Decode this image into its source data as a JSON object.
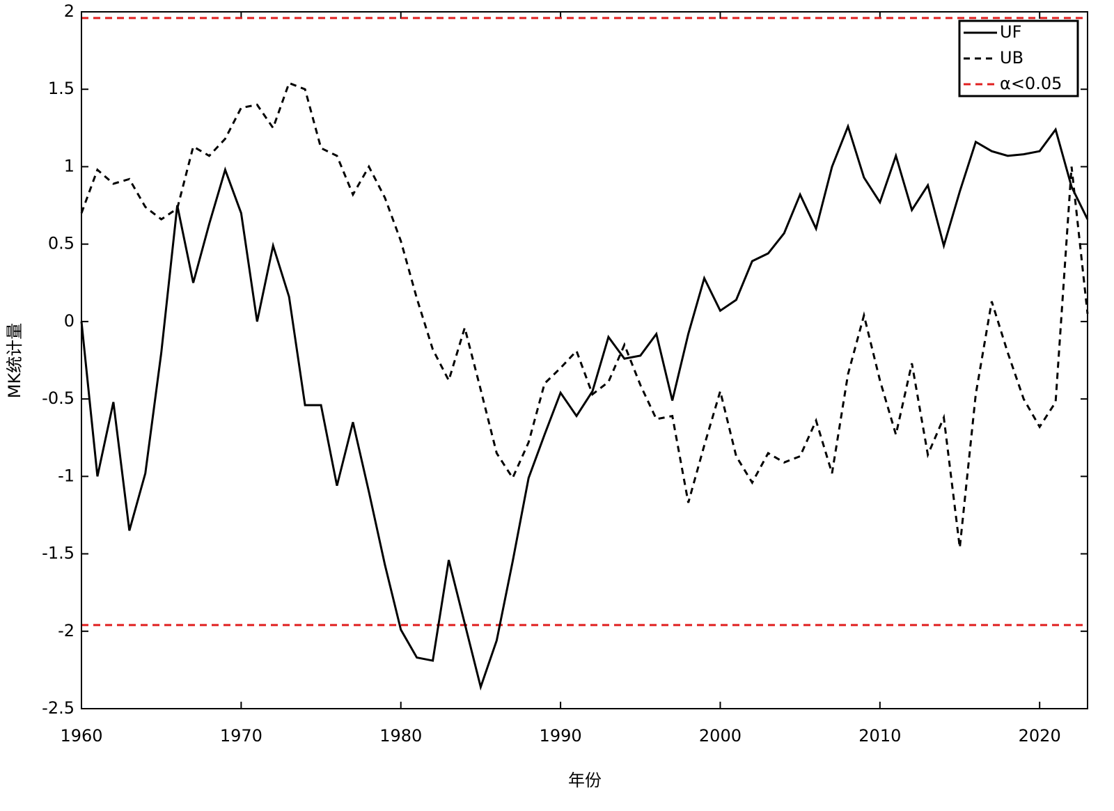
{
  "chart_data": {
    "type": "line",
    "xlabel": "年份",
    "ylabel": "MK统计量",
    "x": [
      1960,
      1961,
      1962,
      1963,
      1964,
      1965,
      1966,
      1967,
      1968,
      1969,
      1970,
      1971,
      1972,
      1973,
      1974,
      1975,
      1976,
      1977,
      1978,
      1979,
      1980,
      1981,
      1982,
      1983,
      1984,
      1985,
      1986,
      1987,
      1988,
      1989,
      1990,
      1991,
      1992,
      1993,
      1994,
      1995,
      1996,
      1997,
      1998,
      1999,
      2000,
      2001,
      2002,
      2003,
      2004,
      2005,
      2006,
      2007,
      2008,
      2009,
      2010,
      2011,
      2012,
      2013,
      2014,
      2015,
      2016,
      2017,
      2018,
      2019,
      2020,
      2021,
      2022,
      2023
    ],
    "series": [
      {
        "name": "UF",
        "color": "#000000",
        "dash": "solid",
        "values": [
          0,
          -1,
          -0.52,
          -1.35,
          -0.98,
          -0.2,
          0.75,
          0.25,
          0.63,
          0.98,
          0.7,
          0,
          0.49,
          0.16,
          -0.54,
          -0.54,
          -1.06,
          -0.65,
          -1.1,
          -1.57,
          -1.99,
          -2.17,
          -2.19,
          -1.54,
          -1.95,
          -2.36,
          -2.06,
          -1.55,
          -1.01,
          -0.73,
          -0.46,
          -0.61,
          -0.45,
          -0.1,
          -0.24,
          -0.22,
          -0.08,
          -0.51,
          -0.08,
          0.28,
          0.07,
          0.14,
          0.39,
          0.44,
          0.57,
          0.82,
          0.6,
          1,
          1.26,
          0.93,
          0.77,
          1.07,
          0.72,
          0.88,
          0.49,
          0.84,
          1.16,
          1.1,
          1.07,
          1.08,
          1.1,
          1.24,
          0.87,
          0.66
        ]
      },
      {
        "name": "UB",
        "color": "#000000",
        "dash": "dashed",
        "values": [
          0.7,
          0.98,
          0.89,
          0.92,
          0.74,
          0.66,
          0.73,
          1.13,
          1.07,
          1.18,
          1.38,
          1.4,
          1.25,
          1.54,
          1.5,
          1.12,
          1.07,
          0.82,
          1,
          0.8,
          0.52,
          0.15,
          -0.18,
          -0.38,
          -0.04,
          -0.44,
          -0.85,
          -1.01,
          -0.78,
          -0.4,
          -0.3,
          -0.19,
          -0.47,
          -0.39,
          -0.15,
          -0.41,
          -0.63,
          -0.61,
          -1.17,
          -0.8,
          -0.45,
          -0.87,
          -1.04,
          -0.85,
          -0.91,
          -0.87,
          -0.64,
          -0.98,
          -0.34,
          0.04,
          -0.38,
          -0.73,
          -0.27,
          -0.86,
          -0.62,
          -1.46,
          -0.47,
          0.13,
          -0.2,
          -0.5,
          -0.68,
          -0.52,
          1,
          0.05
        ]
      }
    ],
    "hlines": {
      "name": "α<0.05",
      "color": "#e02020",
      "values": [
        1.96,
        -1.96
      ]
    },
    "xlim": [
      1960,
      2023
    ],
    "xticks": [
      1960,
      1970,
      1980,
      1990,
      2000,
      2010,
      2020
    ],
    "ylim": [
      -2.5,
      2
    ],
    "yticks": [
      2,
      1.5,
      1,
      0.5,
      0,
      -0.5,
      -1,
      -1.5,
      -2,
      -2.5
    ],
    "legend": "upper right",
    "grid": false
  }
}
